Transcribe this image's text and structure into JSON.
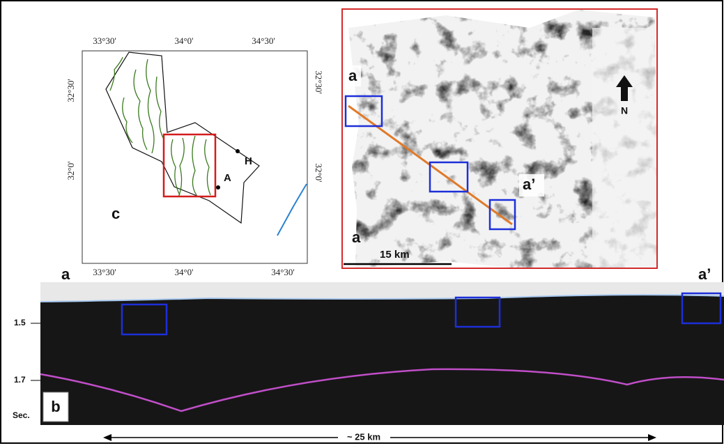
{
  "map_panel": {
    "label": "c",
    "x_labels": [
      "33°30'",
      "34°0'",
      "34°30'"
    ],
    "y_labels": [
      "32°30'",
      "32°0'"
    ],
    "points": [
      "H",
      "A"
    ]
  },
  "attribute_panel": {
    "label": "a",
    "line_start": "a",
    "line_end": "a’",
    "north": "N",
    "scale_bar": "15 km"
  },
  "section_panel": {
    "label": "b",
    "line_start": "a",
    "line_end": "a’",
    "depth_ticks": [
      "1.5",
      "1.7"
    ],
    "depth_unit": "Sec.",
    "distance": "~ 25 km"
  }
}
